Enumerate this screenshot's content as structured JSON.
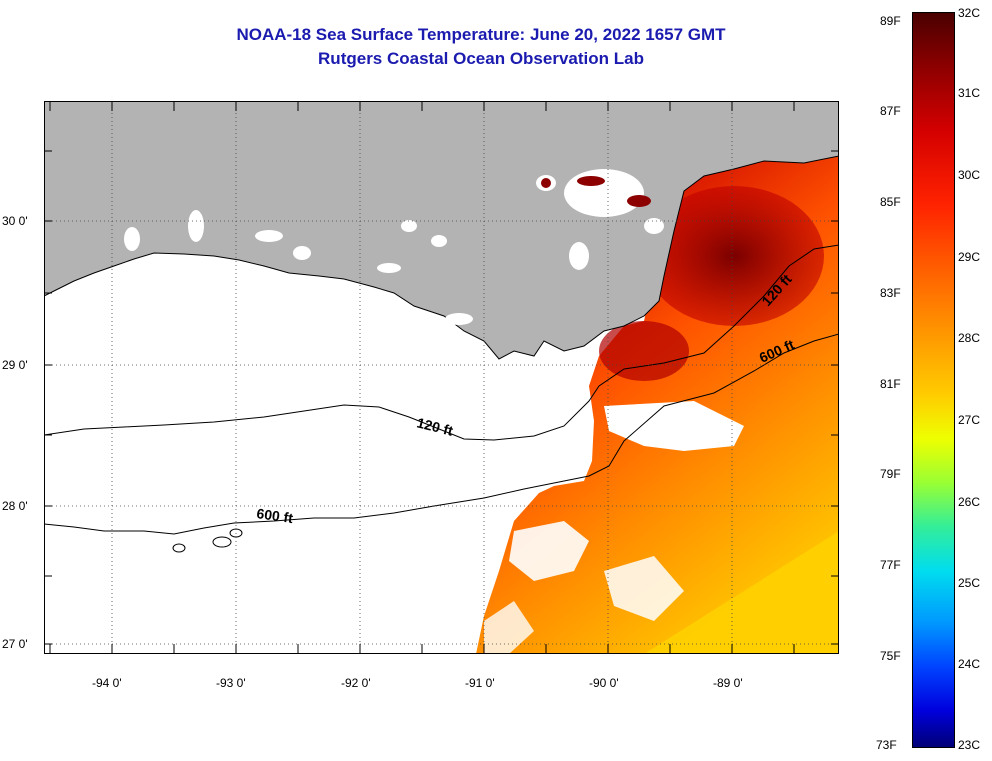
{
  "title": {
    "line1": "NOAA-18 Sea Surface Temperature:  June 20, 2022 1657 GMT",
    "line2": "Rutgers Coastal Ocean Observation Lab"
  },
  "map": {
    "lat_labels": [
      "30 0'",
      "29 0'",
      "28 0'",
      "27 0'"
    ],
    "lon_labels": [
      "-94 0'",
      "-93 0'",
      "-92 0'",
      "-91 0'",
      "-90 0'",
      "-89 0'"
    ],
    "contour_labels": [
      {
        "text": "120 ft"
      },
      {
        "text": "600 ft"
      },
      {
        "text": "120 ft"
      },
      {
        "text": "600 ft"
      }
    ],
    "colors": {
      "land": "#b3b3b3",
      "no_data": "#ffffff",
      "contour": "#000000"
    }
  },
  "colorbar": {
    "fahrenheit_labels": [
      "89F",
      "87F",
      "85F",
      "83F",
      "81F",
      "79F",
      "77F",
      "75F",
      "73F"
    ],
    "celsius_labels": [
      "32C",
      "31C",
      "30C",
      "29C",
      "28C",
      "27C",
      "26C",
      "25C",
      "24C",
      "23C"
    ]
  }
}
